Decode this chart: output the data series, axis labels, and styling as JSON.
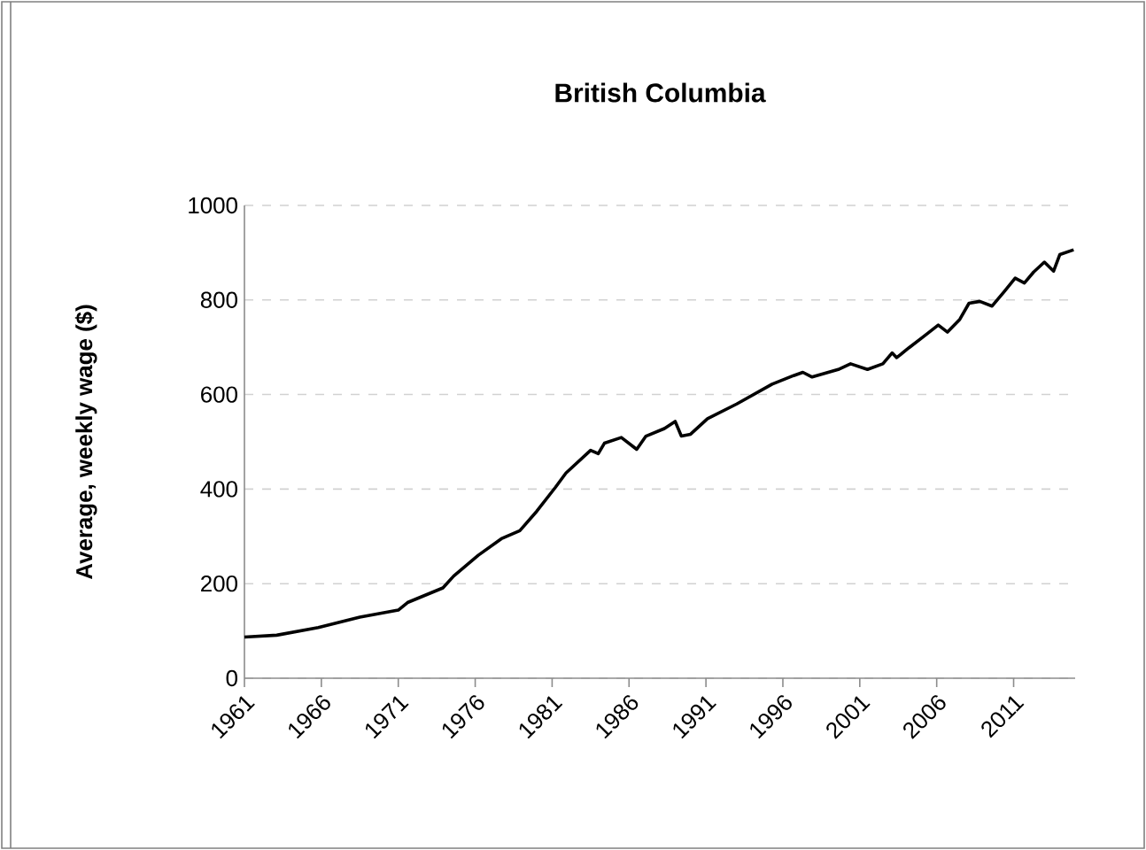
{
  "chart_data": {
    "type": "line",
    "title": "British Columbia",
    "ylabel": "Average, weekly wage ($)",
    "x": [
      1961,
      1963.1,
      1965.8,
      1968.5,
      1971,
      1971.6,
      1973.9,
      1974.6,
      1976.2,
      1977.7,
      1978.9,
      1980.0,
      1981.2,
      1981.9,
      1983.5,
      1984.0,
      1984.4,
      1985.5,
      1986.5,
      1987.1,
      1988.3,
      1989.0,
      1989.4,
      1990.0,
      1991.1,
      1993.0,
      1995.3,
      1996.7,
      1997.3,
      1997.9,
      1999.6,
      2000.4,
      2001.5,
      2002.5,
      2003.1,
      2003.4,
      2004.2,
      2005.2,
      2006.1,
      2006.7,
      2007.5,
      2008.1,
      2008.8,
      2009.6,
      2010.4,
      2011.1,
      2011.7,
      2012.3,
      2013.0,
      2013.6,
      2014.0,
      2014.9
    ],
    "series": [
      {
        "color": "#000000",
        "values": [
          87,
          91,
          107,
          129,
          144,
          160,
          191,
          216,
          260,
          295,
          312,
          353,
          403,
          434,
          482,
          475,
          497,
          509,
          484,
          512,
          528,
          543,
          512,
          516,
          549,
          580,
          622,
          640,
          647,
          637,
          653,
          665,
          653,
          665,
          688,
          678,
          699,
          724,
          747,
          732,
          759,
          793,
          797,
          787,
          818,
          846,
          836,
          859,
          880,
          861,
          896,
          906
        ]
      }
    ],
    "xlim": [
      1961,
      2015
    ],
    "xticks": [
      1961,
      1966,
      1971,
      1976,
      1981,
      1986,
      1991,
      1996,
      2001,
      2006,
      2011
    ],
    "ylim": [
      0,
      1000
    ],
    "yticks": [
      0,
      200,
      400,
      600,
      800,
      1000
    ],
    "grid": "y",
    "marker": "none",
    "line_style": "solid"
  }
}
